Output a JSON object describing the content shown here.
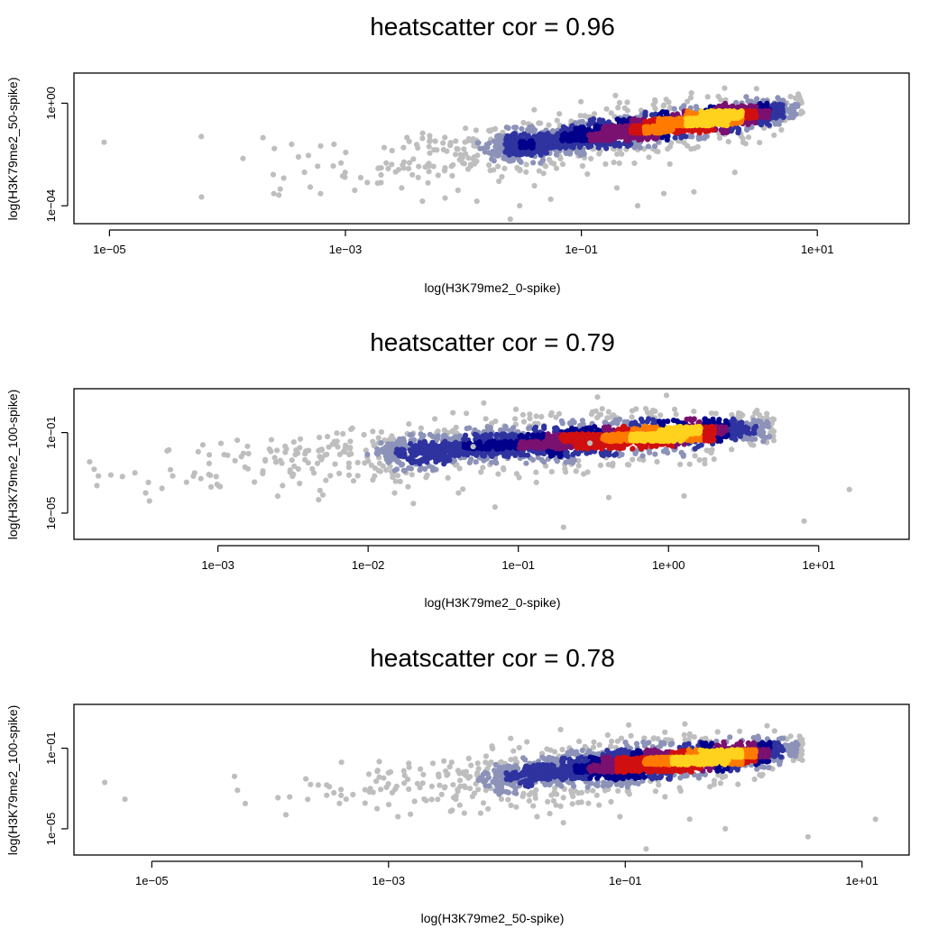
{
  "chart_data": [
    {
      "type": "scatter",
      "title": "heatscatter  cor =  0.96",
      "xlabel": "log(H3K79me2_0-spike)",
      "ylabel": "log(H3K79me2_50-spike)",
      "x_scale": "log",
      "y_scale": "log",
      "xlim": [
        5e-06,
        60
      ],
      "ylim": [
        2e-05,
        15
      ],
      "x_ticks": [
        {
          "v": 1e-05,
          "label": "1e−05"
        },
        {
          "v": 0.001,
          "label": "1e−03"
        },
        {
          "v": 0.1,
          "label": "1e−01"
        },
        {
          "v": 10,
          "label": "1e+01"
        }
      ],
      "y_ticks": [
        {
          "v": 0.0001,
          "label": "1e−04"
        },
        {
          "v": 1,
          "label": "1e+00"
        }
      ],
      "density_colors": [
        "#bebebe",
        "#8c92b8",
        "#2e33a0",
        "#00008b",
        "#7a1070",
        "#d01010",
        "#ff7a00",
        "#ffd21e"
      ],
      "trend": {
        "slope": 0.62,
        "intercept": -0.69,
        "spread": 0.16
      },
      "outliers": [
        [
          9e-06,
          0.03
        ],
        [
          6e-05,
          0.05
        ],
        [
          0.0002,
          0.045
        ],
        [
          0.00025,
          0.017
        ],
        [
          0.00035,
          0.025
        ],
        [
          0.0004,
          0.008
        ],
        [
          0.0003,
          0.0012
        ],
        [
          0.00045,
          0.002
        ],
        [
          0.0008,
          0.025
        ],
        [
          0.00028,
          0.00045
        ],
        [
          0.0012,
          0.0004
        ],
        [
          0.002,
          0.0008
        ],
        [
          0.003,
          0.0005
        ],
        [
          0.0045,
          0.00015
        ],
        [
          0.007,
          0.0002
        ],
        [
          0.009,
          0.0004
        ],
        [
          0.013,
          0.00015
        ],
        [
          0.02,
          0.0009
        ],
        [
          0.03,
          0.0001
        ],
        [
          0.04,
          0.0006
        ],
        [
          0.055,
          0.00018
        ],
        [
          0.025,
          3e-05
        ],
        [
          0.2,
          0.0005
        ],
        [
          0.3,
          0.0001
        ],
        [
          0.5,
          0.0003
        ],
        [
          0.9,
          0.00035
        ],
        [
          2,
          0.002
        ],
        [
          0.018,
          0.0025
        ],
        [
          0.007,
          0.003
        ]
      ]
    },
    {
      "type": "scatter",
      "title": "heatscatter  cor =  0.79",
      "xlabel": "log(H3K79me2_0-spike)",
      "ylabel": "log(H3K79me2_100-spike)",
      "x_scale": "log",
      "y_scale": "log",
      "xlim": [
        0.00011,
        40
      ],
      "ylim": [
        5e-07,
        15
      ],
      "x_ticks": [
        {
          "v": 0.001,
          "label": "1e−03"
        },
        {
          "v": 0.01,
          "label": "1e−02"
        },
        {
          "v": 0.1,
          "label": "1e−01"
        },
        {
          "v": 1,
          "label": "1e+00"
        },
        {
          "v": 10,
          "label": "1e+01"
        }
      ],
      "y_ticks": [
        {
          "v": 1e-05,
          "label": "1e−05"
        },
        {
          "v": 0.1,
          "label": "1e−01"
        }
      ],
      "density_colors": [
        "#bebebe",
        "#8c92b8",
        "#2e33a0",
        "#00008b",
        "#7a1070",
        "#d01010",
        "#ff7a00",
        "#ffd21e"
      ],
      "trend": {
        "slope": 0.5,
        "intercept": -1.1,
        "spread": 0.22
      },
      "outliers": [
        [
          0.00014,
          0.0035
        ],
        [
          0.00015,
          0.0015
        ],
        [
          0.00016,
          0.0007
        ],
        [
          0.00028,
          0.001
        ],
        [
          0.00033,
          0.0001
        ],
        [
          0.00035,
          4e-05
        ],
        [
          0.0005,
          0.0007
        ],
        [
          0.0007,
          0.001
        ],
        [
          0.0009,
          0.0002
        ],
        [
          0.0011,
          0.008
        ],
        [
          0.0013,
          0.004
        ],
        [
          0.0016,
          0.009
        ],
        [
          0.0022,
          0.015
        ],
        [
          0.0025,
          7e-05
        ],
        [
          0.0035,
          0.0003
        ],
        [
          0.005,
          8e-05
        ],
        [
          0.008,
          0.0004
        ],
        [
          0.015,
          0.0001
        ],
        [
          0.02,
          3e-05
        ],
        [
          0.04,
          0.0001
        ],
        [
          0.07,
          2e-05
        ],
        [
          0.2,
          2e-06
        ],
        [
          0.4,
          6e-05
        ],
        [
          8,
          4e-06
        ],
        [
          16,
          0.00015
        ],
        [
          0.3,
          0.03
        ],
        [
          0.05,
          0.02
        ]
      ]
    },
    {
      "type": "scatter",
      "title": "heatscatter  cor =  0.78",
      "xlabel": "log(H3K79me2_50-spike)",
      "ylabel": "log(H3K79me2_100-spike)",
      "x_scale": "log",
      "y_scale": "log",
      "xlim": [
        2.2e-06,
        25
      ],
      "ylim": [
        5e-07,
        15
      ],
      "x_ticks": [
        {
          "v": 1e-05,
          "label": "1e−05"
        },
        {
          "v": 0.001,
          "label": "1e−03"
        },
        {
          "v": 0.1,
          "label": "1e−01"
        },
        {
          "v": 10,
          "label": "1e+01"
        }
      ],
      "y_ticks": [
        {
          "v": 1e-05,
          "label": "1e−05"
        },
        {
          "v": 0.1,
          "label": "1e−01"
        }
      ],
      "density_colors": [
        "#bebebe",
        "#8c92b8",
        "#2e33a0",
        "#00008b",
        "#7a1070",
        "#d01010",
        "#ff7a00",
        "#ffd21e"
      ],
      "trend": {
        "slope": 0.55,
        "intercept": -1.3,
        "spread": 0.22
      },
      "outliers": [
        [
          4e-06,
          0.002
        ],
        [
          5e-05,
          0.004
        ],
        [
          0.0002,
          0.003
        ],
        [
          0.0003,
          0.0015
        ],
        [
          0.0004,
          0.02
        ],
        [
          0.0005,
          0.0005
        ],
        [
          0.0007,
          0.001
        ],
        [
          0.001,
          0.006
        ],
        [
          0.0008,
          0.0001
        ],
        [
          0.0012,
          4e-05
        ],
        [
          0.002,
          0.0003
        ],
        [
          0.003,
          0.0012
        ],
        [
          0.004,
          0.00015
        ],
        [
          0.006,
          6e-05
        ],
        [
          0.009,
          0.0003
        ],
        [
          0.012,
          0.00012
        ],
        [
          0.018,
          4e-05
        ],
        [
          0.03,
          2e-05
        ],
        [
          0.04,
          0.0002
        ],
        [
          0.06,
          0.00015
        ],
        [
          0.09,
          4e-05
        ],
        [
          0.15,
          1e-06
        ],
        [
          0.35,
          3e-05
        ],
        [
          0.7,
          1e-05
        ],
        [
          3.5,
          4e-06
        ],
        [
          13,
          3e-05
        ]
      ]
    }
  ]
}
